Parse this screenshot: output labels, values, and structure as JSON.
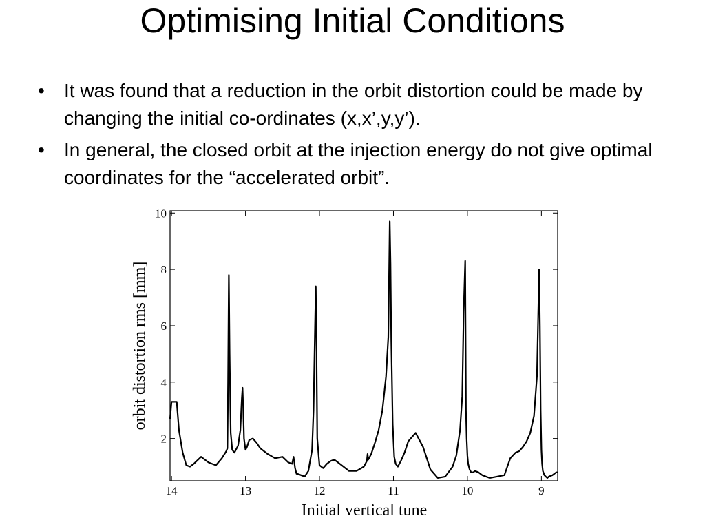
{
  "slide": {
    "title": "Optimising Initial Conditions",
    "bullets": [
      "It was found that a reduction in the orbit distortion could be made by changing the initial co-ordinates (x,x’,y,y’).",
      "In general, the closed orbit at the injection energy do not give optimal coordinates for the “accelerated orbit”."
    ],
    "bullet_symbol": "•"
  },
  "chart_data": {
    "type": "line",
    "xlabel": "Initial vertical tune",
    "ylabel": "orbit distortion rms [mm]",
    "x_reversed": true,
    "xlim": [
      14.02,
      8.78
    ],
    "ylim": [
      0.5,
      10.08
    ],
    "xticks": [
      14,
      13,
      12,
      11,
      10,
      9
    ],
    "yticks": [
      2,
      4,
      6,
      8,
      10
    ],
    "grid": false,
    "line_color": "#000000",
    "series": [
      {
        "x": [
          14.02,
          14.0,
          13.98,
          13.96,
          13.93,
          13.9,
          13.85,
          13.8,
          13.75,
          13.7,
          13.6,
          13.5,
          13.4,
          13.32,
          13.26,
          13.245,
          13.235,
          13.225,
          13.215,
          13.2,
          13.18,
          13.15,
          13.1,
          13.07,
          13.05,
          13.04,
          13.03,
          13.02,
          13.0,
          12.98,
          12.95,
          12.9,
          12.85,
          12.8,
          12.7,
          12.6,
          12.5,
          12.42,
          12.37,
          12.35,
          12.33,
          12.31,
          12.3,
          12.25,
          12.2,
          12.15,
          12.1,
          12.08,
          12.06,
          12.05,
          12.04,
          12.03,
          12.0,
          11.95,
          11.9,
          11.85,
          11.8,
          11.7,
          11.6,
          11.5,
          11.4,
          11.36,
          11.35,
          11.34,
          11.3,
          11.25,
          11.2,
          11.15,
          11.1,
          11.07,
          11.05,
          11.04,
          11.03,
          11.01,
          10.99,
          10.97,
          10.94,
          10.9,
          10.85,
          10.8,
          10.7,
          10.6,
          10.5,
          10.4,
          10.3,
          10.2,
          10.15,
          10.1,
          10.07,
          10.05,
          10.03,
          10.02,
          10.01,
          10.0,
          9.99,
          9.97,
          9.95,
          9.92,
          9.9,
          9.85,
          9.8,
          9.7,
          9.6,
          9.5,
          9.42,
          9.35,
          9.3,
          9.25,
          9.2,
          9.15,
          9.1,
          9.06,
          9.03,
          9.02,
          9.01,
          9.0,
          8.99,
          8.98,
          8.96,
          8.94,
          8.92,
          8.9,
          8.85,
          8.8,
          8.78
        ],
        "y": [
          2.7,
          3.3,
          3.3,
          3.3,
          3.3,
          2.3,
          1.5,
          1.05,
          1.0,
          1.1,
          1.35,
          1.15,
          1.05,
          1.3,
          1.55,
          1.65,
          4.0,
          7.8,
          5.0,
          2.2,
          1.6,
          1.5,
          1.75,
          2.3,
          3.4,
          3.8,
          3.0,
          2.0,
          1.6,
          1.7,
          1.95,
          2.0,
          1.85,
          1.65,
          1.45,
          1.3,
          1.35,
          1.15,
          1.1,
          1.35,
          0.95,
          0.75,
          0.75,
          0.7,
          0.65,
          0.85,
          1.6,
          3.0,
          6.0,
          7.4,
          5.2,
          2.0,
          1.05,
          0.95,
          1.1,
          1.2,
          1.25,
          1.05,
          0.85,
          0.85,
          1.0,
          1.2,
          1.45,
          1.25,
          1.45,
          1.85,
          2.3,
          3.0,
          4.2,
          5.6,
          9.7,
          8.2,
          5.5,
          2.5,
          1.35,
          1.1,
          1.0,
          1.2,
          1.5,
          1.9,
          2.2,
          1.7,
          0.9,
          0.6,
          0.65,
          1.0,
          1.4,
          2.3,
          3.5,
          6.5,
          8.3,
          3.0,
          2.0,
          1.4,
          1.1,
          0.9,
          0.8,
          0.8,
          0.85,
          0.8,
          0.7,
          0.6,
          0.65,
          0.7,
          1.3,
          1.5,
          1.55,
          1.7,
          1.9,
          2.2,
          2.8,
          4.2,
          8.0,
          6.0,
          3.0,
          1.6,
          1.1,
          0.85,
          0.7,
          0.65,
          0.6,
          0.65,
          0.7,
          0.8,
          0.8
        ]
      }
    ]
  }
}
